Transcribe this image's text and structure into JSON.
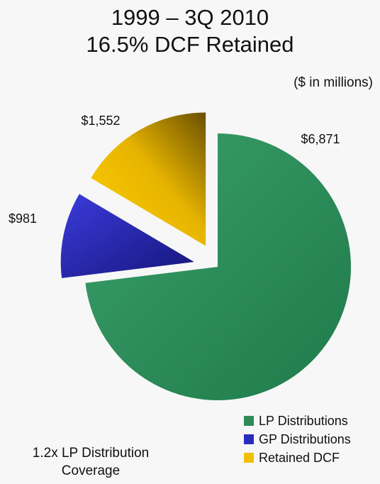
{
  "chart_data": {
    "type": "pie",
    "title": "1999 – 3Q 2010",
    "subtitle": "16.5% DCF Retained",
    "units_note": "($ in millions)",
    "slices": [
      {
        "name": "LP Distributions",
        "value": 6871,
        "label": "$6,871",
        "color": "#2e8b57",
        "exploded": false
      },
      {
        "name": "GP Distributions",
        "value": 981,
        "label": "$981",
        "color": "#2b2bbf",
        "exploded": true
      },
      {
        "name": "Retained DCF",
        "value": 1552,
        "label": "$1,552",
        "color": "#f0c000",
        "exploded": true
      }
    ],
    "legend_position": "bottom-right",
    "annotation": "1.2x LP Distribution Coverage"
  }
}
